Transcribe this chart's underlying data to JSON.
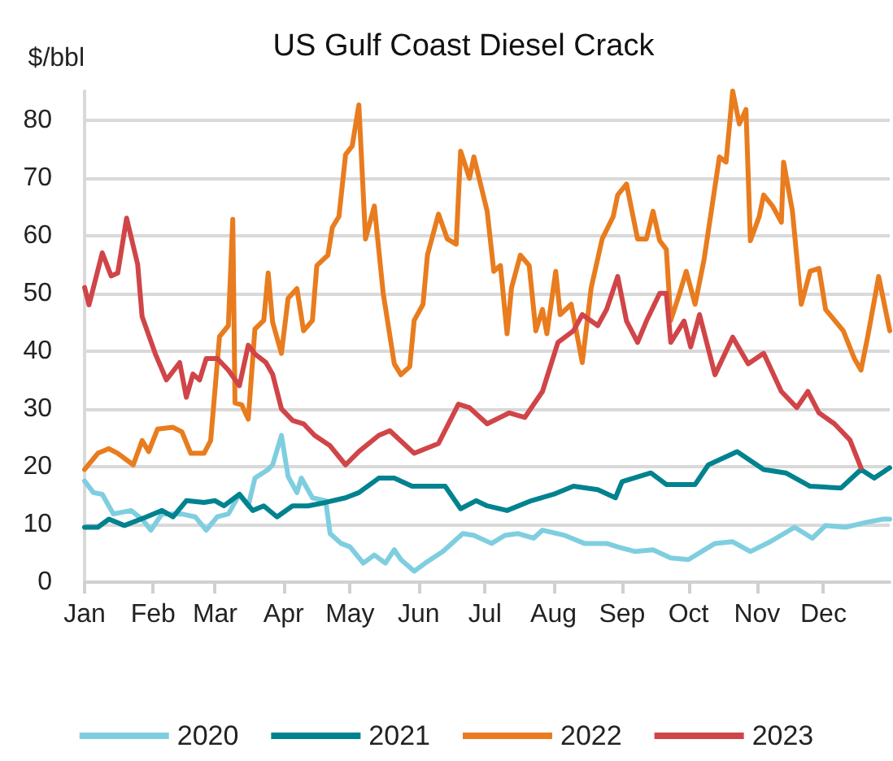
{
  "chart_data": {
    "type": "line",
    "title": "US Gulf Coast Diesel Crack",
    "ylabel": "$/bbl",
    "xlim": [
      "--01-01",
      "--12-31"
    ],
    "xticks": [
      {
        "value": "--01-01",
        "label": "Jan"
      },
      {
        "value": "--02-01",
        "label": "Feb"
      },
      {
        "value": "--03-01",
        "label": "Mar"
      },
      {
        "value": "--04-01",
        "label": "Apr"
      },
      {
        "value": "--05-01",
        "label": "May"
      },
      {
        "value": "--06-01",
        "label": "Jun"
      },
      {
        "value": "--07-01",
        "label": "Jul"
      },
      {
        "value": "--08-01",
        "label": "Aug"
      },
      {
        "value": "--09-01",
        "label": "Sep"
      },
      {
        "value": "--10-01",
        "label": "Oct"
      },
      {
        "value": "--11-01",
        "label": "Nov"
      },
      {
        "value": "--12-01",
        "label": "Dec"
      }
    ],
    "ylim": [
      0,
      85
    ],
    "yticks": [
      0,
      10,
      20,
      30,
      40,
      50,
      60,
      70,
      80
    ],
    "grid": "y",
    "legend": "bottom",
    "marker": "none",
    "line_style": "solid",
    "series": [
      {
        "name": "2020",
        "color": "#7fcee0",
        "x": [
          "--01-01",
          "--01-05",
          "--01-09",
          "--01-14",
          "--01-22",
          "--01-27",
          "--01-31",
          "--02-05",
          "--02-14",
          "--02-20",
          "--02-25",
          "--03-02",
          "--03-07",
          "--03-12",
          "--03-16",
          "--03-19",
          "--03-25",
          "--03-27",
          "--03-31",
          "--04-03",
          "--04-07",
          "--04-09",
          "--04-14",
          "--04-20",
          "--04-22",
          "--04-27",
          "--05-01",
          "--05-07",
          "--05-12",
          "--05-17",
          "--05-21",
          "--05-24",
          "--05-30",
          "--06-04",
          "--06-12",
          "--06-21",
          "--06-26",
          "--07-04",
          "--07-10",
          "--07-16",
          "--07-23",
          "--07-27",
          "--08-06",
          "--08-15",
          "--08-25",
          "--08-30",
          "--09-07",
          "--09-15",
          "--09-23",
          "--10-01",
          "--10-13",
          "--10-21",
          "--10-29",
          "--11-07",
          "--11-18",
          "--11-26",
          "--12-02",
          "--12-11",
          "--12-21",
          "--12-28",
          "--12-31"
        ],
        "values": [
          17.5,
          15.5,
          15.2,
          11.8,
          12.4,
          10.9,
          9,
          11.8,
          11.8,
          11.3,
          9,
          11.3,
          11.8,
          15.2,
          13.2,
          18,
          19.5,
          20.3,
          25.4,
          18.3,
          15.5,
          18,
          14.6,
          14.1,
          8.4,
          6.7,
          6.1,
          3.3,
          4.7,
          3.3,
          5.6,
          3.9,
          1.9,
          3.3,
          5.3,
          8.4,
          8.1,
          6.7,
          8.1,
          8.4,
          7.6,
          9,
          8.1,
          6.7,
          6.7,
          6.1,
          5.3,
          5.6,
          4.2,
          3.9,
          6.7,
          7,
          5.3,
          7,
          9.5,
          7.6,
          9.8,
          9.5,
          10.4,
          10.9,
          10.9
        ]
      },
      {
        "name": "2021",
        "color": "#00828f",
        "x": [
          "--01-01",
          "--01-07",
          "--01-12",
          "--01-19",
          "--01-29",
          "--02-05",
          "--02-10",
          "--02-16",
          "--02-24",
          "--03-01",
          "--03-05",
          "--03-12",
          "--03-18",
          "--03-23",
          "--03-29",
          "--04-05",
          "--04-12",
          "--04-20",
          "--04-29",
          "--05-05",
          "--05-14",
          "--05-21",
          "--05-29",
          "--06-13",
          "--06-20",
          "--06-27",
          "--07-02",
          "--07-11",
          "--07-22",
          "--08-01",
          "--08-10",
          "--08-21",
          "--08-29",
          "--09-01",
          "--09-14",
          "--09-21",
          "--10-04",
          "--10-10",
          "--10-23",
          "--11-04",
          "--11-14",
          "--11-25",
          "--12-09",
          "--12-18",
          "--12-24",
          "--12-31"
        ],
        "values": [
          9.5,
          9.5,
          10.9,
          9.8,
          11.3,
          12.4,
          11.3,
          14.1,
          13.8,
          14.1,
          13.2,
          15.2,
          12.4,
          13.2,
          11.3,
          13.2,
          13.2,
          13.8,
          14.6,
          15.5,
          18,
          18,
          16.6,
          16.6,
          12.7,
          14.1,
          13.2,
          12.4,
          14.1,
          15.2,
          16.6,
          16,
          14.6,
          17.4,
          18.9,
          16.9,
          16.9,
          20.3,
          22.6,
          19.5,
          18.9,
          16.6,
          16.3,
          19.5,
          18,
          19.8
        ]
      },
      {
        "name": "2022",
        "color": "#e87c1e",
        "x": [
          "--01-01",
          "--01-07",
          "--01-12",
          "--01-16",
          "--01-23",
          "--01-27",
          "--01-30",
          "--02-03",
          "--02-10",
          "--02-14",
          "--02-18",
          "--02-24",
          "--02-27",
          "--03-03",
          "--03-07",
          "--03-09",
          "--03-10",
          "--03-13",
          "--03-16",
          "--03-19",
          "--03-23",
          "--03-25",
          "--03-27",
          "--03-31",
          "--04-03",
          "--04-07",
          "--04-10",
          "--04-14",
          "--04-16",
          "--04-21",
          "--04-23",
          "--04-26",
          "--04-29",
          "--05-02",
          "--05-05",
          "--05-08",
          "--05-12",
          "--05-16",
          "--05-21",
          "--05-24",
          "--05-28",
          "--05-30",
          "--06-03",
          "--06-05",
          "--06-10",
          "--06-14",
          "--06-18",
          "--06-20",
          "--06-24",
          "--06-26",
          "--07-02",
          "--07-05",
          "--07-08",
          "--07-11",
          "--07-13",
          "--07-17",
          "--07-21",
          "--07-24",
          "--07-27",
          "--07-29",
          "--08-02",
          "--08-04",
          "--08-09",
          "--08-14",
          "--08-18",
          "--08-23",
          "--08-28",
          "--08-30",
          "--09-03",
          "--09-08",
          "--09-12",
          "--09-15",
          "--09-18",
          "--09-21",
          "--09-23",
          "--09-27",
          "--09-30",
          "--10-04",
          "--10-08",
          "--10-15",
          "--10-18",
          "--10-21",
          "--10-24",
          "--10-27",
          "--10-29",
          "--11-02",
          "--11-04",
          "--11-08",
          "--11-12",
          "--11-13",
          "--11-17",
          "--11-21",
          "--11-25",
          "--11-29",
          "--12-02",
          "--12-10",
          "--12-15",
          "--12-18",
          "--12-21",
          "--12-26",
          "--12-31"
        ],
        "values": [
          19.5,
          22.3,
          23.1,
          22.3,
          20.3,
          24.5,
          22.6,
          26.5,
          26.8,
          26,
          22.3,
          22.3,
          24.5,
          42.5,
          44.4,
          62.8,
          31,
          30.7,
          28.2,
          43.8,
          45.3,
          53.5,
          45,
          39.6,
          49.1,
          50.8,
          43.5,
          45.3,
          54.8,
          56.6,
          61.4,
          63.3,
          74,
          75.5,
          82.6,
          59.4,
          65.1,
          50,
          37.8,
          35.9,
          37.3,
          45.3,
          48.1,
          56.6,
          63.7,
          59.4,
          58.5,
          74.6,
          69.9,
          73.6,
          64.2,
          53.8,
          54.8,
          43,
          50.9,
          56.6,
          54.8,
          43.5,
          47.2,
          43,
          53.8,
          46.3,
          48.1,
          38,
          50.9,
          59.4,
          63.3,
          67,
          68.9,
          59.4,
          59.4,
          64.2,
          59.1,
          57.6,
          45.3,
          50,
          53.8,
          48.1,
          55.7,
          73.6,
          72.7,
          85,
          79.3,
          81.8,
          59.1,
          63.3,
          67,
          65.1,
          62.3,
          72.7,
          64.2,
          48.1,
          53.8,
          54.3,
          47.2,
          43.5,
          38.7,
          36.7,
          42.4,
          52.9,
          43.5
        ]
      },
      {
        "name": "2023",
        "color": "#d04548",
        "x": [
          "--01-01",
          "--01-03",
          "--01-09",
          "--01-13",
          "--01-16",
          "--01-20",
          "--01-25",
          "--01-27",
          "--02-02",
          "--02-07",
          "--02-13",
          "--02-16",
          "--02-19",
          "--02-22",
          "--02-25",
          "--03-02",
          "--03-07",
          "--03-12",
          "--03-16",
          "--03-19",
          "--03-24",
          "--03-27",
          "--03-31",
          "--04-05",
          "--04-10",
          "--04-15",
          "--04-22",
          "--04-29",
          "--05-05",
          "--05-14",
          "--05-19",
          "--05-30",
          "--06-10",
          "--06-19",
          "--06-24",
          "--07-02",
          "--07-12",
          "--07-19",
          "--07-27",
          "--08-03",
          "--08-10",
          "--08-14",
          "--08-21",
          "--08-25",
          "--08-30",
          "--09-03",
          "--09-08",
          "--09-12",
          "--09-18",
          "--09-21",
          "--09-23",
          "--09-29",
          "--10-02",
          "--10-06",
          "--10-13",
          "--10-21",
          "--10-28",
          "--11-04",
          "--11-12",
          "--11-19",
          "--11-24",
          "--11-29",
          "--12-06",
          "--12-13",
          "--12-18"
        ],
        "values": [
          51,
          48,
          57,
          53,
          53.5,
          63,
          55,
          46,
          39.5,
          35,
          38,
          32,
          36,
          35,
          38.7,
          38.7,
          36.7,
          34,
          41,
          39.5,
          38,
          36,
          30,
          28,
          27.4,
          25.4,
          23.6,
          20.3,
          22.6,
          25.4,
          26.2,
          22.3,
          24,
          30.8,
          30.2,
          27.4,
          29.3,
          28.5,
          33,
          41.5,
          43.5,
          46.3,
          44.4,
          47.2,
          52.9,
          45.2,
          41.5,
          45.2,
          50,
          50,
          41.5,
          45.2,
          40.7,
          46.3,
          35.9,
          42.4,
          37.8,
          39.6,
          33,
          30.2,
          33,
          29.3,
          27.4,
          24.6,
          19.8
        ]
      }
    ]
  }
}
